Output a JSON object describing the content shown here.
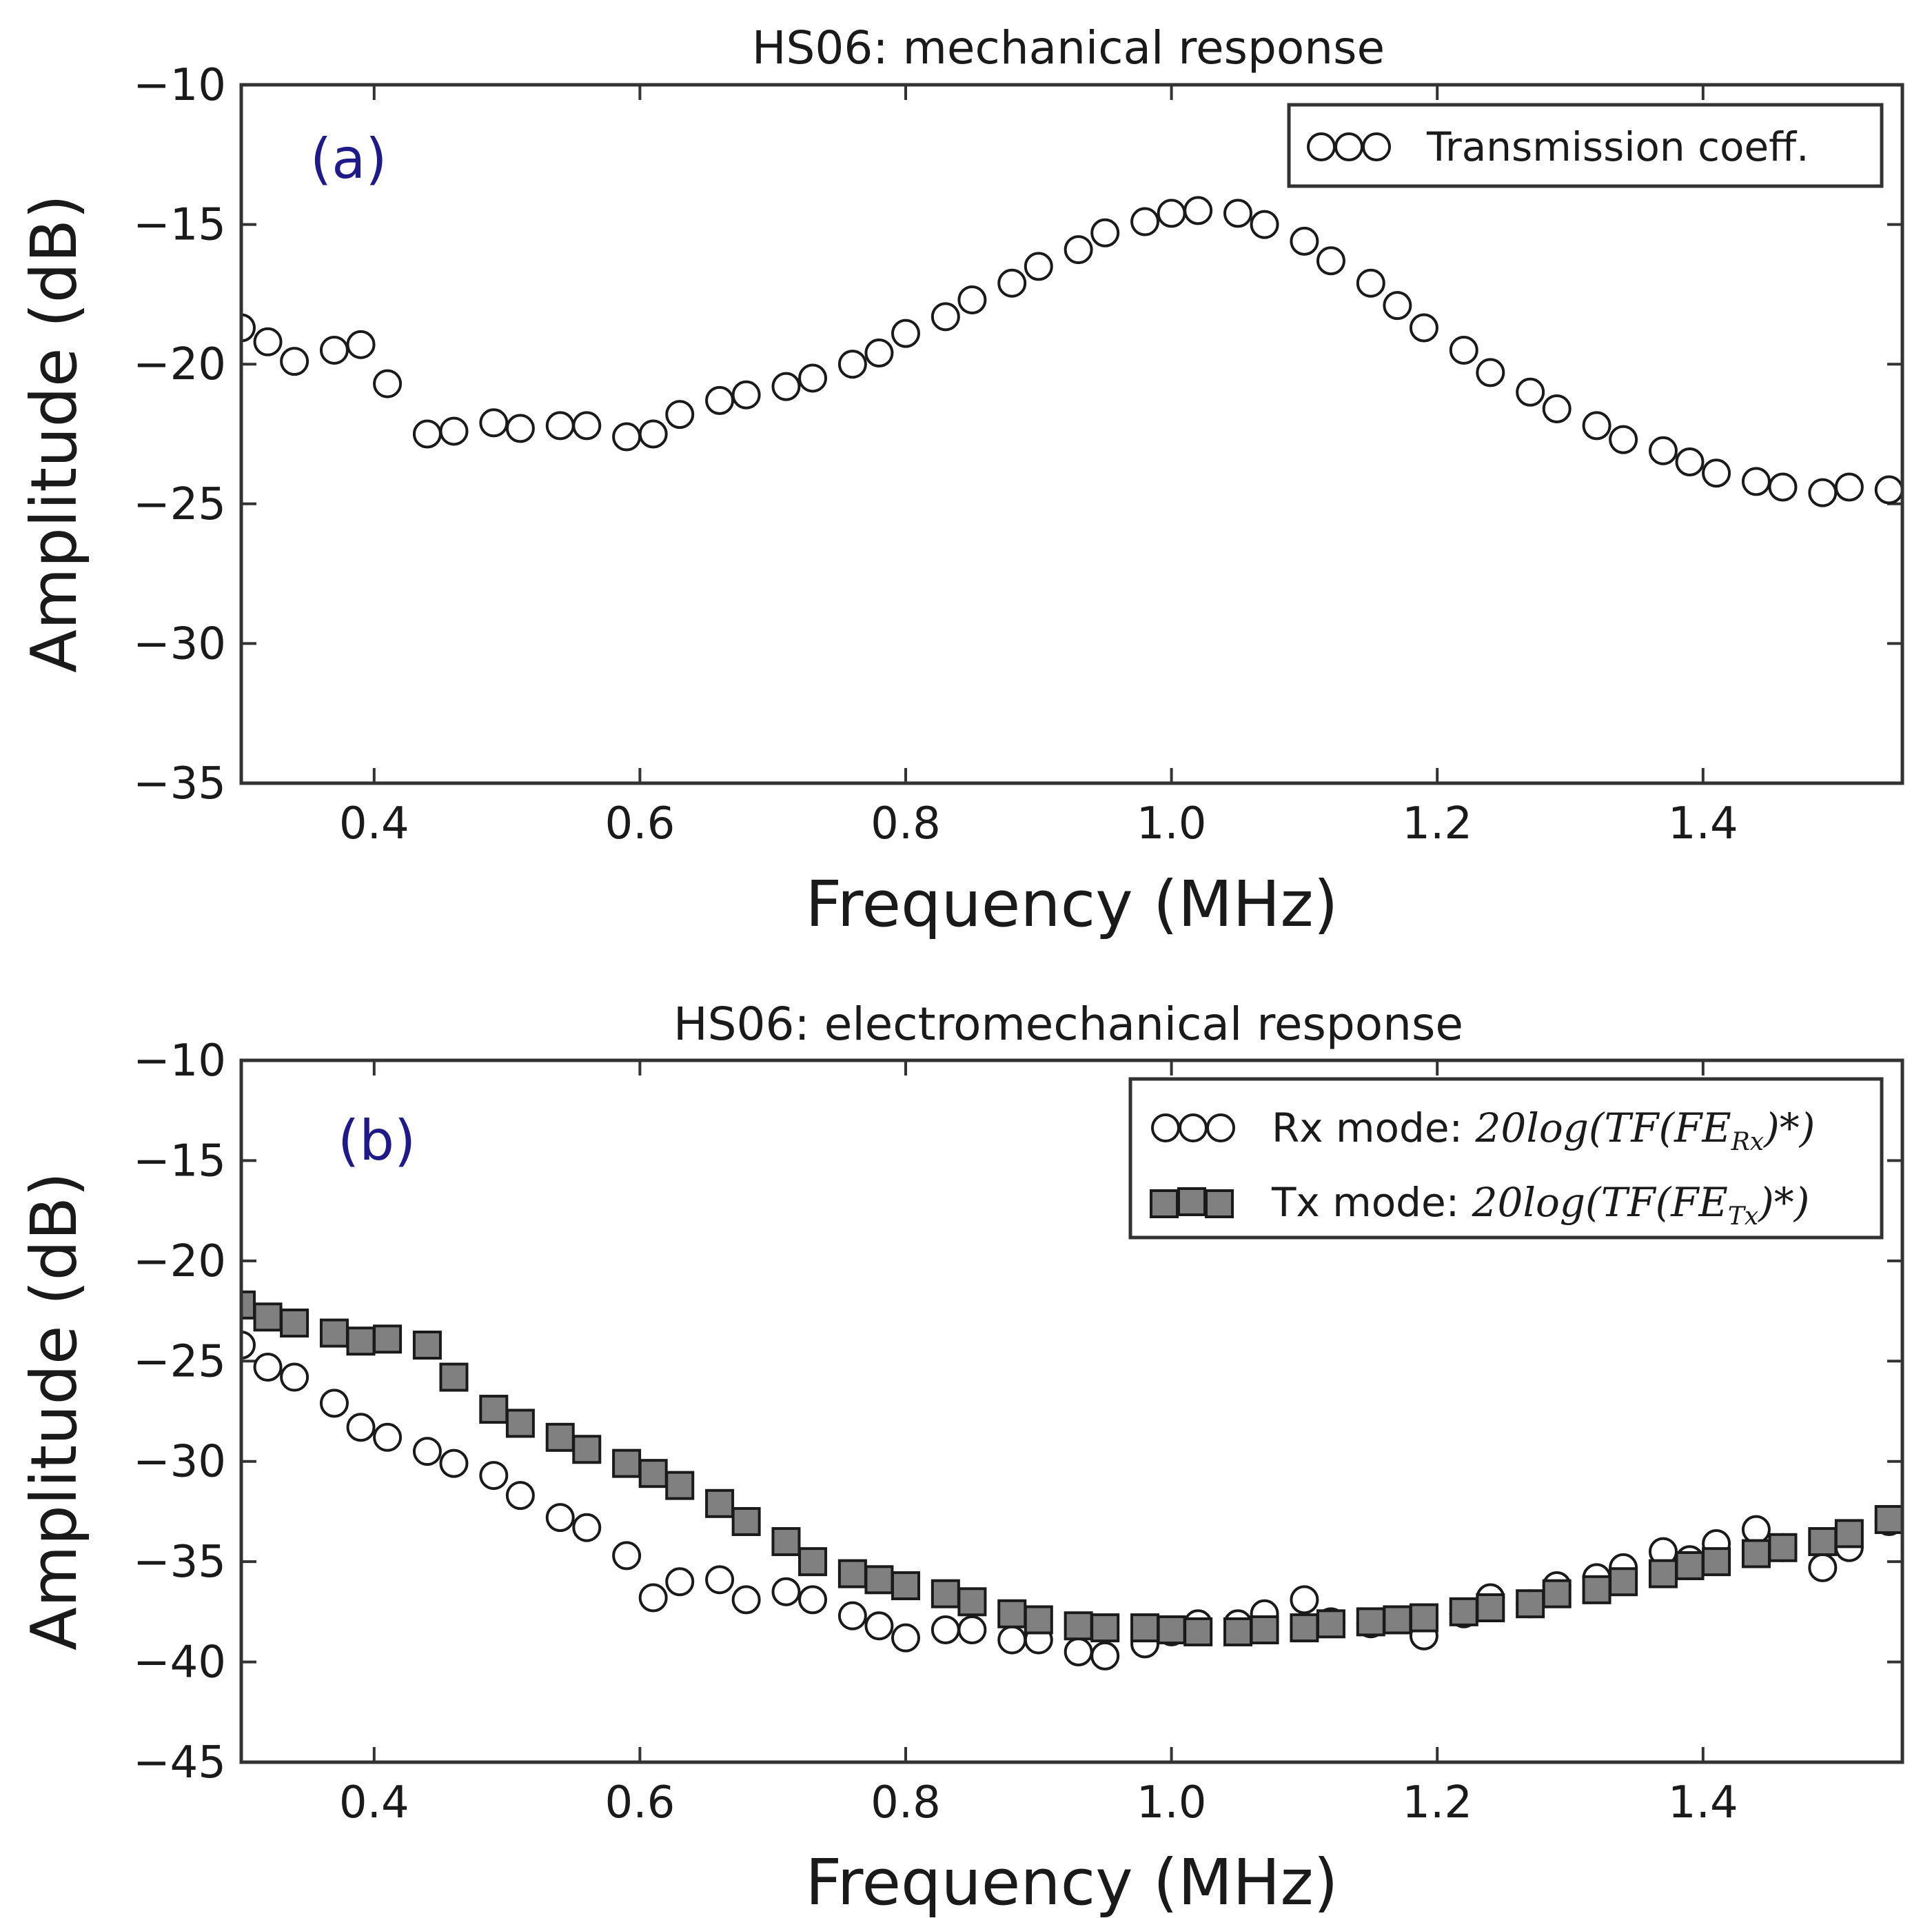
{
  "chart_data": [
    {
      "type": "scatter",
      "panel_label": "(a)",
      "title": "HS06: mechanical response",
      "xlabel": "Frequency (MHz)",
      "ylabel": "Amplitude (dB)",
      "xlim": [
        0.3,
        1.55
      ],
      "ylim": [
        -35,
        -10
      ],
      "xticks": [
        0.4,
        0.6,
        0.8,
        1.0,
        1.2,
        1.4
      ],
      "xtick_labels": [
        "0.4",
        "0.6",
        "0.8",
        "1.0",
        "1.2",
        "1.4"
      ],
      "yticks": [
        -35,
        -30,
        -25,
        -20,
        -15,
        -10
      ],
      "ytick_labels": [
        "−35",
        "−30",
        "−25",
        "−20",
        "−15",
        "−10"
      ],
      "legend_position": "top-right",
      "series": [
        {
          "name": "Transmission coeff.",
          "legend_label": "Transmission coeff.",
          "marker": "open-circle",
          "x": [
            0.3,
            0.32,
            0.34,
            0.37,
            0.39,
            0.41,
            0.44,
            0.46,
            0.49,
            0.51,
            0.54,
            0.56,
            0.59,
            0.61,
            0.63,
            0.66,
            0.68,
            0.71,
            0.73,
            0.76,
            0.78,
            0.8,
            0.83,
            0.85,
            0.88,
            0.9,
            0.93,
            0.95,
            0.98,
            1.0,
            1.02,
            1.05,
            1.07,
            1.1,
            1.12,
            1.15,
            1.17,
            1.19,
            1.22,
            1.24,
            1.27,
            1.29,
            1.32,
            1.34,
            1.37,
            1.39,
            1.41,
            1.44,
            1.46,
            1.49,
            1.51,
            1.54
          ],
          "y": [
            -18.7,
            -19.2,
            -19.9,
            -19.5,
            -19.3,
            -20.7,
            -22.5,
            -22.4,
            -22.1,
            -22.3,
            -22.2,
            -22.2,
            -22.6,
            -22.5,
            -21.8,
            -21.3,
            -21.1,
            -20.8,
            -20.5,
            -20.0,
            -19.6,
            -18.9,
            -18.3,
            -17.7,
            -17.1,
            -16.5,
            -15.9,
            -15.3,
            -14.9,
            -14.6,
            -14.5,
            -14.6,
            -15.0,
            -15.6,
            -16.3,
            -17.1,
            -17.9,
            -18.7,
            -19.5,
            -20.3,
            -21.0,
            -21.6,
            -22.2,
            -22.7,
            -23.1,
            -23.5,
            -23.9,
            -24.2,
            -24.4,
            -24.6,
            -24.4,
            -24.5
          ]
        }
      ]
    },
    {
      "type": "scatter",
      "panel_label": "(b)",
      "title": "HS06: electromechanical response",
      "xlabel": "Frequency (MHz)",
      "ylabel": "Amplitude (dB)",
      "xlim": [
        0.3,
        1.55
      ],
      "ylim": [
        -45,
        -10
      ],
      "xticks": [
        0.4,
        0.6,
        0.8,
        1.0,
        1.2,
        1.4
      ],
      "xtick_labels": [
        "0.4",
        "0.6",
        "0.8",
        "1.0",
        "1.2",
        "1.4"
      ],
      "yticks": [
        -45,
        -40,
        -35,
        -30,
        -25,
        -20,
        -15,
        -10
      ],
      "ytick_labels": [
        "−45",
        "−40",
        "−35",
        "−30",
        "−25",
        "−20",
        "−15",
        "−10"
      ],
      "legend_position": "top-right",
      "series": [
        {
          "name": "Rx mode",
          "legend_label": "Rx mode: ",
          "legend_math": "20log(TF(FE",
          "legend_sub": "Rx",
          "legend_math_end": ")*)",
          "marker": "open-circle",
          "x": [
            0.3,
            0.32,
            0.34,
            0.37,
            0.39,
            0.41,
            0.44,
            0.46,
            0.49,
            0.51,
            0.54,
            0.56,
            0.59,
            0.61,
            0.63,
            0.66,
            0.68,
            0.71,
            0.73,
            0.76,
            0.78,
            0.8,
            0.83,
            0.85,
            0.88,
            0.9,
            0.93,
            0.95,
            0.98,
            1.0,
            1.02,
            1.05,
            1.07,
            1.1,
            1.12,
            1.15,
            1.17,
            1.19,
            1.22,
            1.24,
            1.27,
            1.29,
            1.32,
            1.34,
            1.37,
            1.39,
            1.41,
            1.44,
            1.46,
            1.49,
            1.51,
            1.54
          ],
          "y": [
            -24.2,
            -25.3,
            -25.8,
            -27.1,
            -28.3,
            -28.8,
            -29.5,
            -30.1,
            -30.7,
            -31.7,
            -32.8,
            -33.3,
            -34.7,
            -36.8,
            -36.0,
            -35.9,
            -36.9,
            -36.5,
            -36.9,
            -37.7,
            -38.2,
            -38.8,
            -38.4,
            -38.4,
            -38.9,
            -38.9,
            -39.5,
            -39.7,
            -39.1,
            -38.5,
            -38.1,
            -38.1,
            -37.6,
            -36.9,
            -38.0,
            -38.1,
            -37.9,
            -38.7,
            -37.6,
            -36.8,
            -37.1,
            -36.2,
            -35.8,
            -35.3,
            -34.5,
            -34.9,
            -34.1,
            -33.4,
            -34.3,
            -35.3,
            -34.3,
            -33.0
          ]
        },
        {
          "name": "Tx mode",
          "legend_label": "Tx mode: ",
          "legend_math": "20log(TF(FE",
          "legend_sub": "Tx",
          "legend_math_end": ")*)",
          "marker": "filled-square",
          "color": "#808080",
          "x": [
            0.3,
            0.32,
            0.34,
            0.37,
            0.39,
            0.41,
            0.44,
            0.46,
            0.49,
            0.51,
            0.54,
            0.56,
            0.59,
            0.61,
            0.63,
            0.66,
            0.68,
            0.71,
            0.73,
            0.76,
            0.78,
            0.8,
            0.83,
            0.85,
            0.88,
            0.9,
            0.93,
            0.95,
            0.98,
            1.0,
            1.02,
            1.05,
            1.07,
            1.1,
            1.12,
            1.15,
            1.17,
            1.19,
            1.22,
            1.24,
            1.27,
            1.29,
            1.32,
            1.34,
            1.37,
            1.39,
            1.41,
            1.44,
            1.46,
            1.49,
            1.51,
            1.54
          ],
          "y": [
            -22.2,
            -22.8,
            -23.1,
            -23.6,
            -24.0,
            -23.9,
            -24.2,
            -25.8,
            -27.4,
            -28.1,
            -28.8,
            -29.4,
            -30.1,
            -30.6,
            -31.2,
            -32.1,
            -33.0,
            -34.0,
            -35.0,
            -35.6,
            -35.9,
            -36.2,
            -36.6,
            -37.0,
            -37.6,
            -37.9,
            -38.2,
            -38.3,
            -38.3,
            -38.4,
            -38.5,
            -38.5,
            -38.4,
            -38.3,
            -38.1,
            -38.0,
            -37.9,
            -37.8,
            -37.5,
            -37.3,
            -37.1,
            -36.6,
            -36.4,
            -36.0,
            -35.6,
            -35.2,
            -35.0,
            -34.6,
            -34.3,
            -34.0,
            -33.6,
            -32.9
          ]
        }
      ]
    }
  ]
}
